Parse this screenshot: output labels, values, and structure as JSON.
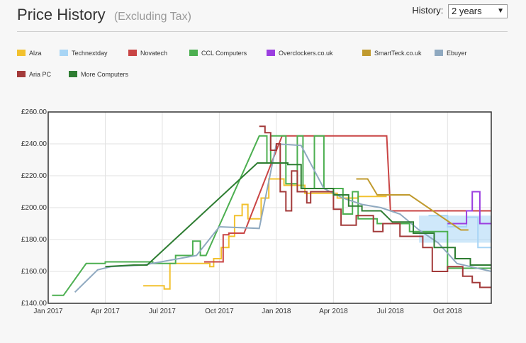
{
  "header": {
    "title": "Price History",
    "subtitle": "(Excluding Tax)",
    "history_label": "History:",
    "history_value": "2 years"
  },
  "chart_data": {
    "type": "line",
    "x_axis": {
      "ticks": [
        "Jan 2017",
        "Apr 2017",
        "Jul 2017",
        "Oct 2017",
        "Jan 2018",
        "Apr 2018",
        "Jul 2018",
        "Oct 2018"
      ],
      "range_months": [
        0,
        23.3
      ]
    },
    "y_axis": {
      "ticks": [
        "£140.00",
        "£160.00",
        "£180.00",
        "£200.00",
        "£220.00",
        "£240.00",
        "£260.00"
      ],
      "range": [
        140,
        260
      ]
    },
    "grid": true,
    "legend_position": "top-left",
    "series": [
      {
        "name": "Alza",
        "color": "#f2c12e",
        "points": [
          [
            5.0,
            151
          ],
          [
            6.1,
            151
          ],
          [
            6.1,
            149
          ],
          [
            6.4,
            149
          ],
          [
            6.4,
            165
          ],
          [
            8.0,
            165
          ],
          [
            8.0,
            165
          ],
          [
            8.5,
            165
          ],
          [
            8.5,
            163
          ],
          [
            8.7,
            163
          ],
          [
            8.7,
            168
          ],
          [
            9.1,
            168
          ],
          [
            9.1,
            175
          ],
          [
            9.5,
            175
          ],
          [
            9.5,
            182
          ],
          [
            9.8,
            182
          ],
          [
            9.8,
            195
          ],
          [
            10.2,
            195
          ],
          [
            10.2,
            202
          ],
          [
            10.5,
            202
          ],
          [
            10.5,
            193
          ],
          [
            11.2,
            193
          ],
          [
            11.2,
            206
          ],
          [
            11.6,
            206
          ],
          [
            11.6,
            218
          ],
          [
            12.4,
            218
          ],
          [
            12.4,
            214
          ],
          [
            13.5,
            214
          ],
          [
            13.5,
            209
          ],
          [
            15.2,
            209
          ],
          [
            15.2,
            206
          ],
          [
            16.3,
            206
          ],
          [
            16.3,
            207
          ],
          [
            17.8,
            207
          ]
        ]
      },
      {
        "name": "Technextday",
        "color": "#a8d5f5",
        "points": [
          [
            20.0,
            195
          ],
          [
            21.0,
            195
          ],
          [
            21.0,
            188
          ],
          [
            22.0,
            188
          ],
          [
            22.0,
            194
          ],
          [
            22.6,
            194
          ],
          [
            22.6,
            175
          ],
          [
            23.3,
            175
          ]
        ],
        "band": [
          [
            19.5,
            178
          ],
          [
            23.3,
            195
          ]
        ]
      },
      {
        "name": "Novatech",
        "color": "#c94545",
        "points": [
          [
            8.2,
            166
          ],
          [
            8.8,
            166
          ],
          [
            8.8,
            166
          ],
          [
            9.2,
            166
          ],
          [
            9.2,
            183
          ],
          [
            9.5,
            183
          ],
          [
            9.5,
            184
          ],
          [
            10.3,
            184
          ],
          [
            12.3,
            245
          ],
          [
            17.8,
            245
          ],
          [
            18.0,
            198
          ],
          [
            23.3,
            198
          ]
        ]
      },
      {
        "name": "CCL Computers",
        "color": "#4caf50",
        "points": [
          [
            0.2,
            145
          ],
          [
            0.8,
            145
          ],
          [
            2.0,
            165
          ],
          [
            3.0,
            165
          ],
          [
            3.0,
            166
          ],
          [
            4.5,
            166
          ],
          [
            4.5,
            166
          ],
          [
            5.5,
            166
          ],
          [
            5.5,
            165
          ],
          [
            6.7,
            165
          ],
          [
            6.7,
            170
          ],
          [
            7.6,
            170
          ],
          [
            7.6,
            179
          ],
          [
            8.0,
            179
          ],
          [
            8.0,
            170
          ],
          [
            8.3,
            170
          ],
          [
            11.1,
            245
          ],
          [
            11.5,
            245
          ],
          [
            11.5,
            228
          ],
          [
            11.7,
            228
          ],
          [
            11.7,
            245
          ],
          [
            12.5,
            245
          ],
          [
            12.5,
            215
          ],
          [
            13.1,
            215
          ],
          [
            13.1,
            245
          ],
          [
            13.4,
            245
          ],
          [
            13.4,
            212
          ],
          [
            14.0,
            212
          ],
          [
            14.0,
            245
          ],
          [
            14.5,
            245
          ],
          [
            14.5,
            212
          ],
          [
            15.5,
            212
          ],
          [
            15.5,
            196
          ],
          [
            16.0,
            196
          ],
          [
            16.0,
            210
          ],
          [
            16.3,
            210
          ],
          [
            16.3,
            193
          ],
          [
            17.3,
            193
          ],
          [
            17.3,
            190
          ],
          [
            19.0,
            190
          ],
          [
            19.0,
            185
          ],
          [
            21.0,
            185
          ],
          [
            21.0,
            162
          ],
          [
            23.3,
            162
          ]
        ]
      },
      {
        "name": "Overclockers.co.uk",
        "color": "#9b3ee0",
        "points": [
          [
            21.0,
            190
          ],
          [
            22.0,
            190
          ],
          [
            22.0,
            198
          ],
          [
            22.3,
            198
          ],
          [
            22.3,
            210
          ],
          [
            22.7,
            210
          ],
          [
            22.7,
            190
          ],
          [
            23.3,
            190
          ]
        ]
      },
      {
        "name": "SmartTeck.co.uk",
        "color": "#c09a2e",
        "points": [
          [
            16.2,
            218
          ],
          [
            16.8,
            218
          ],
          [
            17.3,
            208
          ],
          [
            19.0,
            208
          ],
          [
            21.7,
            186
          ],
          [
            22.1,
            186
          ]
        ]
      },
      {
        "name": "Ebuyer",
        "color": "#8fa9c0",
        "points": [
          [
            1.4,
            147
          ],
          [
            2.6,
            161
          ],
          [
            3.3,
            163
          ],
          [
            5.0,
            164
          ],
          [
            7.8,
            170
          ],
          [
            9.0,
            188
          ],
          [
            11.1,
            187
          ],
          [
            12.0,
            240
          ],
          [
            13.3,
            239
          ],
          [
            14.5,
            212
          ],
          [
            15.5,
            206
          ],
          [
            16.5,
            202
          ],
          [
            17.5,
            200
          ],
          [
            18.5,
            196
          ],
          [
            19.5,
            186
          ],
          [
            20.5,
            178
          ],
          [
            21.5,
            165
          ],
          [
            23.3,
            160
          ]
        ]
      },
      {
        "name": "Aria PC",
        "color": "#a33a3a",
        "points": [
          [
            11.1,
            251
          ],
          [
            11.4,
            251
          ],
          [
            11.4,
            247
          ],
          [
            11.7,
            247
          ],
          [
            11.7,
            236
          ],
          [
            12.0,
            236
          ],
          [
            12.0,
            240
          ],
          [
            12.2,
            240
          ],
          [
            12.2,
            210
          ],
          [
            12.5,
            210
          ],
          [
            12.5,
            198
          ],
          [
            12.8,
            198
          ],
          [
            12.8,
            223
          ],
          [
            13.1,
            223
          ],
          [
            13.1,
            210
          ],
          [
            13.6,
            210
          ],
          [
            13.6,
            203
          ],
          [
            13.8,
            203
          ],
          [
            13.8,
            210
          ],
          [
            15.0,
            210
          ],
          [
            15.0,
            199
          ],
          [
            15.4,
            199
          ],
          [
            15.4,
            189
          ],
          [
            16.2,
            189
          ],
          [
            16.2,
            195
          ],
          [
            17.1,
            195
          ],
          [
            17.1,
            185
          ],
          [
            17.6,
            185
          ],
          [
            17.6,
            190
          ],
          [
            18.5,
            190
          ],
          [
            18.5,
            182
          ],
          [
            19.7,
            182
          ],
          [
            19.7,
            175
          ],
          [
            20.2,
            175
          ],
          [
            20.2,
            160
          ],
          [
            21.0,
            160
          ],
          [
            21.0,
            163
          ],
          [
            21.8,
            163
          ],
          [
            21.8,
            157
          ],
          [
            22.3,
            157
          ],
          [
            22.3,
            153
          ],
          [
            22.7,
            153
          ],
          [
            22.7,
            150
          ],
          [
            23.3,
            150
          ]
        ]
      },
      {
        "name": "More Computers",
        "color": "#2e7d32",
        "points": [
          [
            3.0,
            163
          ],
          [
            4.5,
            164
          ],
          [
            4.5,
            164
          ],
          [
            5.2,
            164
          ],
          [
            11.0,
            228
          ],
          [
            12.6,
            228
          ],
          [
            12.6,
            227
          ],
          [
            13.3,
            227
          ],
          [
            13.3,
            212
          ],
          [
            15.0,
            212
          ],
          [
            15.0,
            208
          ],
          [
            15.8,
            208
          ],
          [
            15.8,
            201
          ],
          [
            16.5,
            201
          ],
          [
            16.5,
            198
          ],
          [
            17.5,
            198
          ],
          [
            18.1,
            191
          ],
          [
            19.2,
            191
          ],
          [
            19.2,
            184
          ],
          [
            20.3,
            184
          ],
          [
            20.3,
            175
          ],
          [
            21.4,
            175
          ],
          [
            21.4,
            168
          ],
          [
            22.2,
            168
          ],
          [
            22.2,
            164
          ],
          [
            23.3,
            164
          ]
        ]
      }
    ]
  }
}
